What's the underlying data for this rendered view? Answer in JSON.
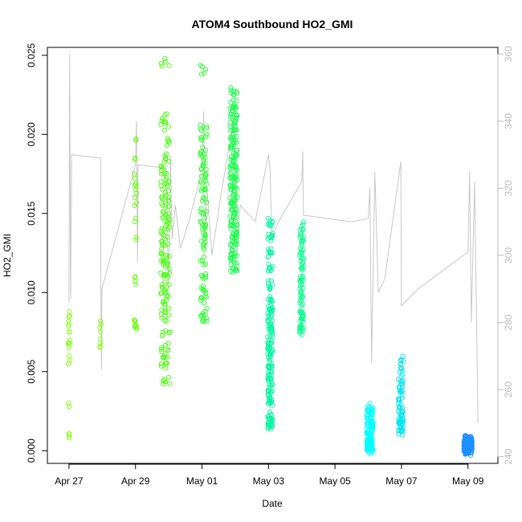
{
  "chart_data": {
    "type": "scatter",
    "title": "ATOM4 Southbound HO2_GMI",
    "xlabel": "Date",
    "ylabel": "HO2_GMI",
    "x_range_days": [
      -0.65,
      12.9
    ],
    "ylim": [
      -0.0008,
      0.0255
    ],
    "y2lim": [
      238,
      362
    ],
    "x_ticks": [
      {
        "day": 0,
        "label": "Apr 27"
      },
      {
        "day": 2,
        "label": "Apr 29"
      },
      {
        "day": 4,
        "label": "May 01"
      },
      {
        "day": 6,
        "label": "May 03"
      },
      {
        "day": 8,
        "label": "May 05"
      },
      {
        "day": 10,
        "label": "May 07"
      },
      {
        "day": 12,
        "label": "May 09"
      }
    ],
    "y_ticks": [
      {
        "value": 0.0,
        "label": "0.000"
      },
      {
        "value": 0.005,
        "label": "0.005"
      },
      {
        "value": 0.01,
        "label": "0.010"
      },
      {
        "value": 0.015,
        "label": "0.015"
      },
      {
        "value": 0.02,
        "label": "0.020"
      },
      {
        "value": 0.025,
        "label": "0.025"
      }
    ],
    "y2_ticks": [
      {
        "value": 240,
        "label": "240"
      },
      {
        "value": 260,
        "label": "260"
      },
      {
        "value": 280,
        "label": "280"
      },
      {
        "value": 300,
        "label": "300"
      },
      {
        "value": 320,
        "label": "320"
      },
      {
        "value": 340,
        "label": "340"
      },
      {
        "value": 360,
        "label": "360"
      }
    ],
    "scatter_clusters": [
      {
        "day": 0.0,
        "width": 0.06,
        "color": "#7fff00",
        "count": 24,
        "values": [
          0.0011,
          0.001,
          0.003,
          0.0055,
          0.006,
          0.0065,
          0.0068,
          0.007,
          0.0075,
          0.008,
          0.0082,
          0.0085,
          0.0088
        ]
      },
      {
        "day": 0.95,
        "width": 0.05,
        "color": "#7fff00",
        "count": 8,
        "values": [
          0.0066,
          0.0068,
          0.0075,
          0.0078,
          0.008,
          0.0082
        ]
      },
      {
        "day": 2.0,
        "width": 0.08,
        "color": "#5fff00",
        "count": 30,
        "values": [
          0.0077,
          0.008,
          0.0082,
          0.0105,
          0.011,
          0.0135,
          0.0147,
          0.0155,
          0.016,
          0.0165,
          0.0168,
          0.0175,
          0.0185,
          0.0197
        ]
      },
      {
        "day": 2.9,
        "width": 0.28,
        "color": "#3fff00",
        "count": 170,
        "values": [
          0.0045,
          0.0055,
          0.006,
          0.0065,
          0.0075,
          0.0085,
          0.009,
          0.0095,
          0.01,
          0.0105,
          0.011,
          0.0115,
          0.012,
          0.0125,
          0.013,
          0.0135,
          0.014,
          0.0145,
          0.015,
          0.0155,
          0.016,
          0.0165,
          0.017,
          0.0175,
          0.018,
          0.0185,
          0.0195,
          0.0205,
          0.021,
          0.0246
        ]
      },
      {
        "day": 4.05,
        "width": 0.2,
        "color": "#22ff22",
        "count": 110,
        "values": [
          0.0083,
          0.0088,
          0.0095,
          0.0102,
          0.011,
          0.012,
          0.013,
          0.0135,
          0.014,
          0.0145,
          0.015,
          0.016,
          0.0165,
          0.017,
          0.0175,
          0.018,
          0.0185,
          0.019,
          0.0197,
          0.0205,
          0.0241
        ]
      },
      {
        "day": 4.95,
        "width": 0.22,
        "color": "#11ff44",
        "count": 200,
        "values": [
          0.0115,
          0.012,
          0.0125,
          0.013,
          0.0135,
          0.014,
          0.0145,
          0.015,
          0.0155,
          0.016,
          0.0165,
          0.017,
          0.0175,
          0.018,
          0.0185,
          0.019,
          0.0195,
          0.02,
          0.0205,
          0.021,
          0.0215,
          0.022,
          0.0228
        ]
      },
      {
        "day": 6.05,
        "width": 0.15,
        "color": "#00f5a0",
        "count": 200,
        "values": [
          0.0016,
          0.0018,
          0.0022,
          0.003,
          0.0035,
          0.004,
          0.0045,
          0.005,
          0.0055,
          0.006,
          0.0065,
          0.007,
          0.0075,
          0.008,
          0.0085,
          0.009,
          0.0095,
          0.0105,
          0.0115,
          0.0125,
          0.0135,
          0.0145
        ]
      },
      {
        "day": 7.0,
        "width": 0.12,
        "color": "#00ff88",
        "count": 90,
        "values": [
          0.0076,
          0.0078,
          0.0082,
          0.0085,
          0.009,
          0.0095,
          0.01,
          0.0105,
          0.011,
          0.0115,
          0.012,
          0.0125,
          0.013,
          0.0135,
          0.0142
        ]
      },
      {
        "day": 9.05,
        "width": 0.2,
        "color": "#00ffff",
        "count": 140,
        "values": [
          0.0001,
          0.0002,
          0.0003,
          0.0005,
          0.0007,
          0.001,
          0.0013,
          0.0016,
          0.002,
          0.0023,
          0.0027
        ]
      },
      {
        "day": 9.98,
        "width": 0.15,
        "color": "#00e5ee",
        "count": 80,
        "values": [
          0.0012,
          0.0015,
          0.0018,
          0.002,
          0.0022,
          0.0025,
          0.003,
          0.0035,
          0.004,
          0.0045,
          0.005,
          0.0057
        ]
      },
      {
        "day": 12.0,
        "width": 0.25,
        "color": "#1e90ff",
        "count": 220,
        "values": [
          0.0,
          0.0001,
          0.0002,
          0.0003,
          0.0004,
          0.0005,
          0.0006,
          0.0007
        ]
      }
    ],
    "y2_line": {
      "color": "#c8c8c8",
      "points": [
        [
          0.0,
          286
        ],
        [
          0.02,
          360
        ],
        [
          0.05,
          287
        ],
        [
          0.08,
          330
        ],
        [
          0.95,
          329
        ],
        [
          0.96,
          280
        ],
        [
          0.98,
          266
        ],
        [
          0.99,
          290
        ],
        [
          2.0,
          327
        ],
        [
          2.03,
          340
        ],
        [
          2.06,
          298
        ],
        [
          2.08,
          327
        ],
        [
          2.9,
          326
        ],
        [
          2.95,
          310
        ],
        [
          3.0,
          290
        ],
        [
          3.05,
          330
        ],
        [
          3.1,
          305
        ],
        [
          3.2,
          315
        ],
        [
          3.35,
          302
        ],
        [
          3.6,
          310
        ],
        [
          4.0,
          325
        ],
        [
          4.05,
          343
        ],
        [
          4.1,
          305
        ],
        [
          4.15,
          320
        ],
        [
          4.3,
          300
        ],
        [
          4.6,
          320
        ],
        [
          4.95,
          340
        ],
        [
          5.0,
          325
        ],
        [
          5.05,
          300
        ],
        [
          5.15,
          315
        ],
        [
          5.6,
          310
        ],
        [
          6.0,
          330
        ],
        [
          6.05,
          325
        ],
        [
          6.1,
          305
        ],
        [
          6.3,
          310
        ],
        [
          7.0,
          322
        ],
        [
          7.03,
          331
        ],
        [
          7.05,
          312
        ],
        [
          8.5,
          310
        ],
        [
          9.0,
          311
        ],
        [
          9.05,
          320
        ],
        [
          9.1,
          268
        ],
        [
          9.2,
          325
        ],
        [
          9.3,
          289
        ],
        [
          9.5,
          293
        ],
        [
          9.98,
          328
        ],
        [
          10.0,
          285
        ],
        [
          10.5,
          290
        ],
        [
          12.0,
          301
        ],
        [
          12.05,
          325
        ],
        [
          12.1,
          280
        ],
        [
          12.2,
          322
        ],
        [
          12.3,
          250
        ]
      ]
    }
  }
}
